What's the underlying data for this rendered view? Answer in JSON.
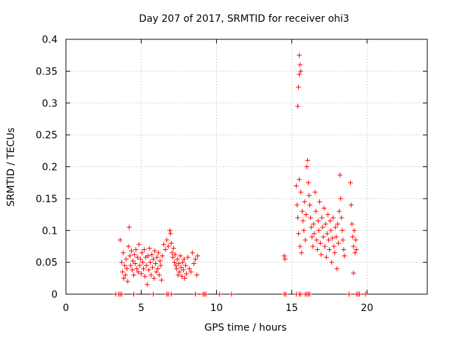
{
  "chart_data": {
    "type": "scatter",
    "title": "Day 207 of 2017, SRMTID for receiver ohi3",
    "xlabel": "GPS time / hours",
    "ylabel": "SRMTID / TECUs",
    "xlim": [
      0,
      24
    ],
    "ylim": [
      0,
      0.4
    ],
    "grid": true,
    "x_ticks": [
      0,
      5,
      10,
      15,
      20
    ],
    "x_tick_labels": [
      "0",
      "5",
      "10",
      "15",
      "20"
    ],
    "y_ticks": [
      0,
      0.05,
      0.1,
      0.15,
      0.2,
      0.25,
      0.3,
      0.35,
      0.4
    ],
    "y_tick_labels": [
      "0",
      "0.05",
      "0.1",
      "0.15",
      "0.2",
      "0.25",
      "0.3",
      "0.35",
      "0.4"
    ],
    "marker": "+",
    "color": "#ff0000",
    "series": [
      {
        "name": "SRMTID",
        "points": [
          [
            3.3,
            0
          ],
          [
            3.5,
            0
          ],
          [
            3.6,
            0
          ],
          [
            3.7,
            0
          ],
          [
            4.5,
            0
          ],
          [
            5.8,
            0
          ],
          [
            6.7,
            0
          ],
          [
            6.8,
            0
          ],
          [
            7.0,
            0
          ],
          [
            8.6,
            0
          ],
          [
            9.1,
            0
          ],
          [
            9.2,
            0
          ],
          [
            9.3,
            0
          ],
          [
            10.2,
            0
          ],
          [
            11.0,
            0
          ],
          [
            14.5,
            0
          ],
          [
            14.6,
            0
          ],
          [
            15.3,
            0
          ],
          [
            15.5,
            0
          ],
          [
            15.6,
            0
          ],
          [
            15.9,
            0
          ],
          [
            16.0,
            0
          ],
          [
            16.1,
            0
          ],
          [
            16.2,
            0
          ],
          [
            18.8,
            0
          ],
          [
            19.3,
            0
          ],
          [
            19.4,
            0
          ],
          [
            19.5,
            0
          ],
          [
            19.9,
            0
          ],
          [
            3.6,
            0.085
          ],
          [
            3.7,
            0.05
          ],
          [
            3.75,
            0.035
          ],
          [
            3.8,
            0.065
          ],
          [
            3.85,
            0.025
          ],
          [
            3.9,
            0.045
          ],
          [
            3.95,
            0.03
          ],
          [
            4.0,
            0.055
          ],
          [
            4.05,
            0.04
          ],
          [
            4.1,
            0.02
          ],
          [
            4.15,
            0.075
          ],
          [
            4.2,
            0.105
          ],
          [
            4.25,
            0.06
          ],
          [
            4.3,
            0.045
          ],
          [
            4.35,
            0.068
          ],
          [
            4.4,
            0.038
          ],
          [
            4.45,
            0.052
          ],
          [
            4.5,
            0.03
          ],
          [
            4.55,
            0.062
          ],
          [
            4.6,
            0.048
          ],
          [
            4.65,
            0.07
          ],
          [
            4.7,
            0.04
          ],
          [
            4.75,
            0.058
          ],
          [
            4.8,
            0.035
          ],
          [
            4.85,
            0.078
          ],
          [
            4.9,
            0.045
          ],
          [
            4.95,
            0.055
          ],
          [
            5.0,
            0.032
          ],
          [
            5.05,
            0.065
          ],
          [
            5.1,
            0.05
          ],
          [
            5.15,
            0.04
          ],
          [
            5.2,
            0.07
          ],
          [
            5.25,
            0.028
          ],
          [
            5.3,
            0.058
          ],
          [
            5.35,
            0.045
          ],
          [
            5.4,
            0.015
          ],
          [
            5.45,
            0.06
          ],
          [
            5.5,
            0.038
          ],
          [
            5.55,
            0.072
          ],
          [
            5.6,
            0.05
          ],
          [
            5.65,
            0.03
          ],
          [
            5.7,
            0.062
          ],
          [
            5.75,
            0.042
          ],
          [
            5.8,
            0.055
          ],
          [
            5.85,
            0.025
          ],
          [
            5.9,
            0.068
          ],
          [
            5.95,
            0.048
          ],
          [
            6.0,
            0.035
          ],
          [
            6.05,
            0.058
          ],
          [
            6.1,
            0.04
          ],
          [
            6.15,
            0.065
          ],
          [
            6.2,
            0.03
          ],
          [
            6.25,
            0.052
          ],
          [
            6.3,
            0.045
          ],
          [
            6.35,
            0.022
          ],
          [
            6.4,
            0.06
          ],
          [
            6.5,
            0.078
          ],
          [
            6.6,
            0.07
          ],
          [
            6.7,
            0.085
          ],
          [
            6.8,
            0.075
          ],
          [
            6.9,
            0.1
          ],
          [
            6.95,
            0.095
          ],
          [
            7.0,
            0.08
          ],
          [
            7.05,
            0.065
          ],
          [
            7.1,
            0.058
          ],
          [
            7.15,
            0.072
          ],
          [
            7.2,
            0.05
          ],
          [
            7.25,
            0.062
          ],
          [
            7.3,
            0.045
          ],
          [
            7.35,
            0.04
          ],
          [
            7.4,
            0.055
          ],
          [
            7.45,
            0.03
          ],
          [
            7.5,
            0.048
          ],
          [
            7.55,
            0.035
          ],
          [
            7.6,
            0.06
          ],
          [
            7.65,
            0.042
          ],
          [
            7.7,
            0.028
          ],
          [
            7.75,
            0.05
          ],
          [
            7.8,
            0.038
          ],
          [
            7.85,
            0.055
          ],
          [
            7.9,
            0.025
          ],
          [
            7.95,
            0.045
          ],
          [
            8.0,
            0.032
          ],
          [
            8.1,
            0.058
          ],
          [
            8.2,
            0.04
          ],
          [
            8.3,
            0.035
          ],
          [
            8.4,
            0.065
          ],
          [
            8.5,
            0.048
          ],
          [
            8.6,
            0.055
          ],
          [
            8.7,
            0.03
          ],
          [
            8.75,
            0.06
          ],
          [
            14.5,
            0.06
          ],
          [
            14.55,
            0.055
          ],
          [
            15.5,
            0.375
          ],
          [
            15.55,
            0.36
          ],
          [
            15.5,
            0.345
          ],
          [
            15.6,
            0.35
          ],
          [
            15.45,
            0.325
          ],
          [
            15.4,
            0.295
          ],
          [
            15.3,
            0.17
          ],
          [
            15.35,
            0.14
          ],
          [
            15.4,
            0.12
          ],
          [
            15.45,
            0.095
          ],
          [
            15.5,
            0.18
          ],
          [
            15.55,
            0.075
          ],
          [
            15.6,
            0.16
          ],
          [
            15.65,
            0.065
          ],
          [
            15.7,
            0.13
          ],
          [
            15.75,
            0.115
          ],
          [
            15.8,
            0.1
          ],
          [
            15.85,
            0.145
          ],
          [
            15.9,
            0.085
          ],
          [
            15.95,
            0.125
          ],
          [
            16.0,
            0.2
          ],
          [
            16.05,
            0.21
          ],
          [
            16.1,
            0.175
          ],
          [
            16.15,
            0.155
          ],
          [
            16.2,
            0.14
          ],
          [
            16.25,
            0.12
          ],
          [
            16.3,
            0.105
          ],
          [
            16.35,
            0.09
          ],
          [
            16.4,
            0.075
          ],
          [
            16.45,
            0.11
          ],
          [
            16.5,
            0.095
          ],
          [
            16.55,
            0.16
          ],
          [
            16.6,
            0.13
          ],
          [
            16.65,
            0.085
          ],
          [
            16.7,
            0.07
          ],
          [
            16.75,
            0.115
          ],
          [
            16.8,
            0.1
          ],
          [
            16.85,
            0.145
          ],
          [
            16.9,
            0.08
          ],
          [
            16.95,
            0.062
          ],
          [
            17.0,
            0.12
          ],
          [
            17.05,
            0.105
          ],
          [
            17.1,
            0.09
          ],
          [
            17.15,
            0.135
          ],
          [
            17.2,
            0.075
          ],
          [
            17.25,
            0.11
          ],
          [
            17.3,
            0.058
          ],
          [
            17.35,
            0.095
          ],
          [
            17.4,
            0.125
          ],
          [
            17.45,
            0.085
          ],
          [
            17.5,
            0.07
          ],
          [
            17.55,
            0.115
          ],
          [
            17.6,
            0.1
          ],
          [
            17.65,
            0.05
          ],
          [
            17.7,
            0.088
          ],
          [
            17.75,
            0.12
          ],
          [
            17.8,
            0.075
          ],
          [
            17.85,
            0.065
          ],
          [
            17.9,
            0.105
          ],
          [
            17.95,
            0.09
          ],
          [
            18.0,
            0.04
          ],
          [
            18.05,
            0.11
          ],
          [
            18.1,
            0.08
          ],
          [
            18.15,
            0.13
          ],
          [
            18.2,
            0.187
          ],
          [
            18.25,
            0.15
          ],
          [
            18.3,
            0.12
          ],
          [
            18.35,
            0.1
          ],
          [
            18.4,
            0.085
          ],
          [
            18.45,
            0.07
          ],
          [
            18.5,
            0.06
          ],
          [
            18.9,
            0.175
          ],
          [
            18.95,
            0.14
          ],
          [
            19.0,
            0.11
          ],
          [
            19.05,
            0.09
          ],
          [
            19.1,
            0.075
          ],
          [
            19.15,
            0.1
          ],
          [
            19.2,
            0.065
          ],
          [
            19.25,
            0.085
          ],
          [
            19.3,
            0.07
          ],
          [
            19.1,
            0.033
          ]
        ]
      }
    ]
  }
}
